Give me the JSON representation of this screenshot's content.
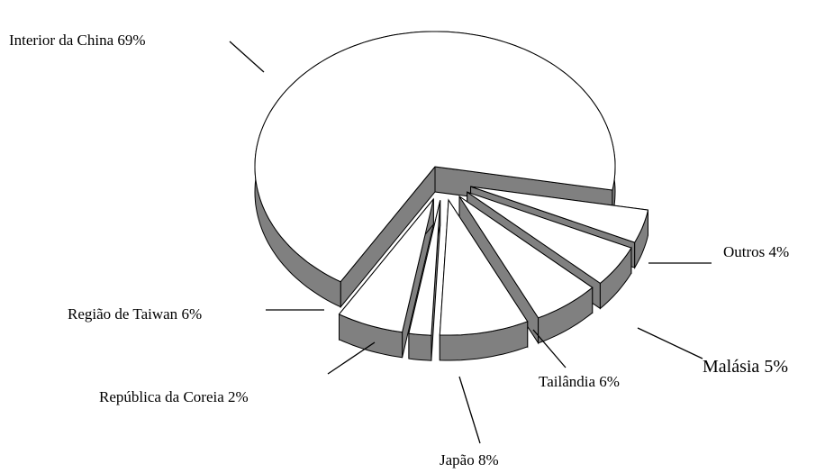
{
  "chart_data": {
    "type": "pie",
    "categories": [
      "Interior da China",
      "Outros",
      "Malásia",
      "Tailândia",
      "Japão",
      "República da Coreia",
      "Região de Taiwan"
    ],
    "values": [
      69,
      4,
      5,
      6,
      8,
      2,
      6
    ],
    "value_labels": [
      "69%",
      "4%",
      "5%",
      "6%",
      "8%",
      "2%",
      "6%"
    ],
    "colors": {
      "top": "#ffffff",
      "side": "#808080",
      "edge": "#000000"
    }
  }
}
